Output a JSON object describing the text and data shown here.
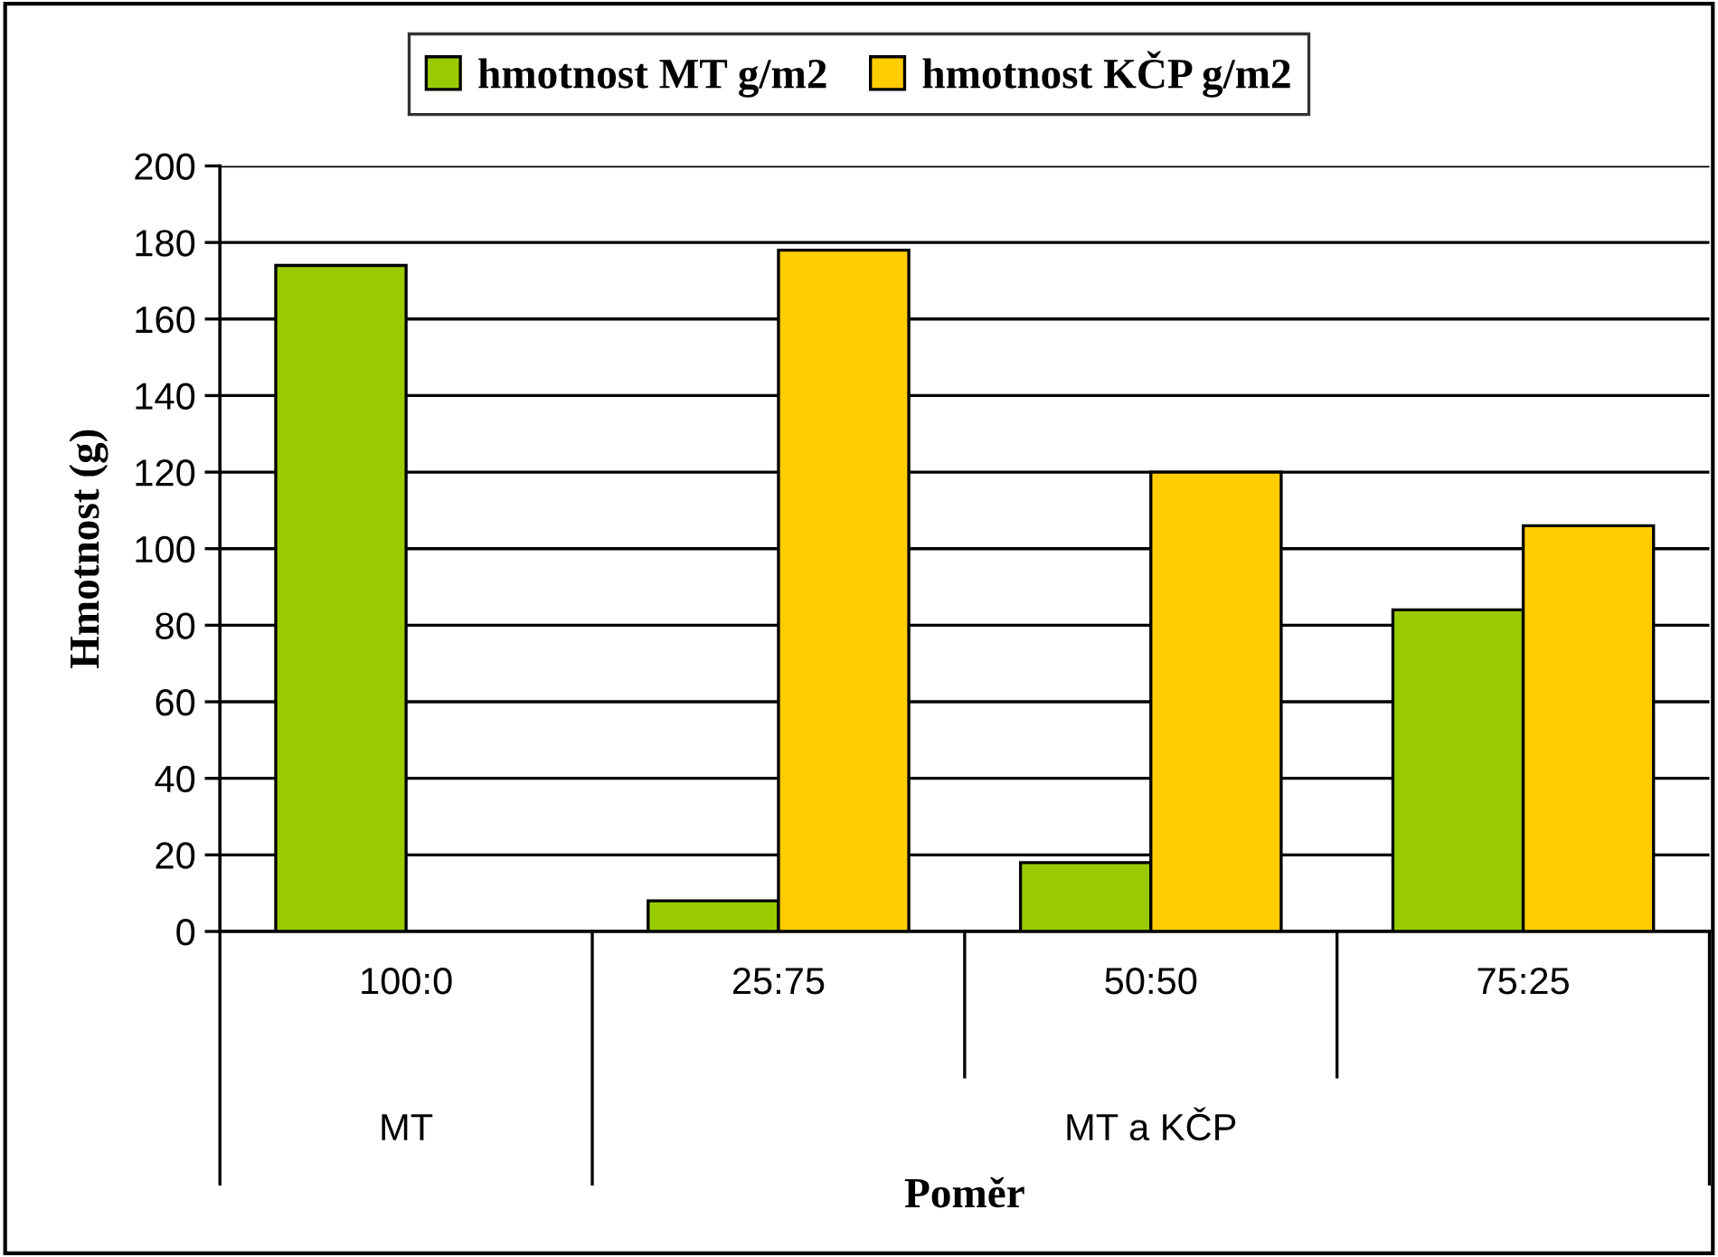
{
  "chart_data": {
    "type": "bar",
    "xlabel": "Poměr",
    "ylabel": "Hmotnost (g)",
    "categories": [
      "100:0",
      "25:75",
      "50:50",
      "75:25"
    ],
    "series": [
      {
        "name": "hmotnost MT g/m2",
        "color": "#99cc00",
        "values": [
          174,
          8,
          18,
          84
        ]
      },
      {
        "name": "hmotnost KČP g/m2",
        "color": "#ffcc00",
        "values": [
          null,
          178,
          120,
          106
        ]
      }
    ],
    "ylim": [
      0,
      200
    ],
    "yticks": [
      0,
      20,
      40,
      60,
      80,
      100,
      120,
      140,
      160,
      180,
      200
    ],
    "grid": "y",
    "legend": "top",
    "annotations": [
      "MT",
      "MT a KČP"
    ]
  }
}
